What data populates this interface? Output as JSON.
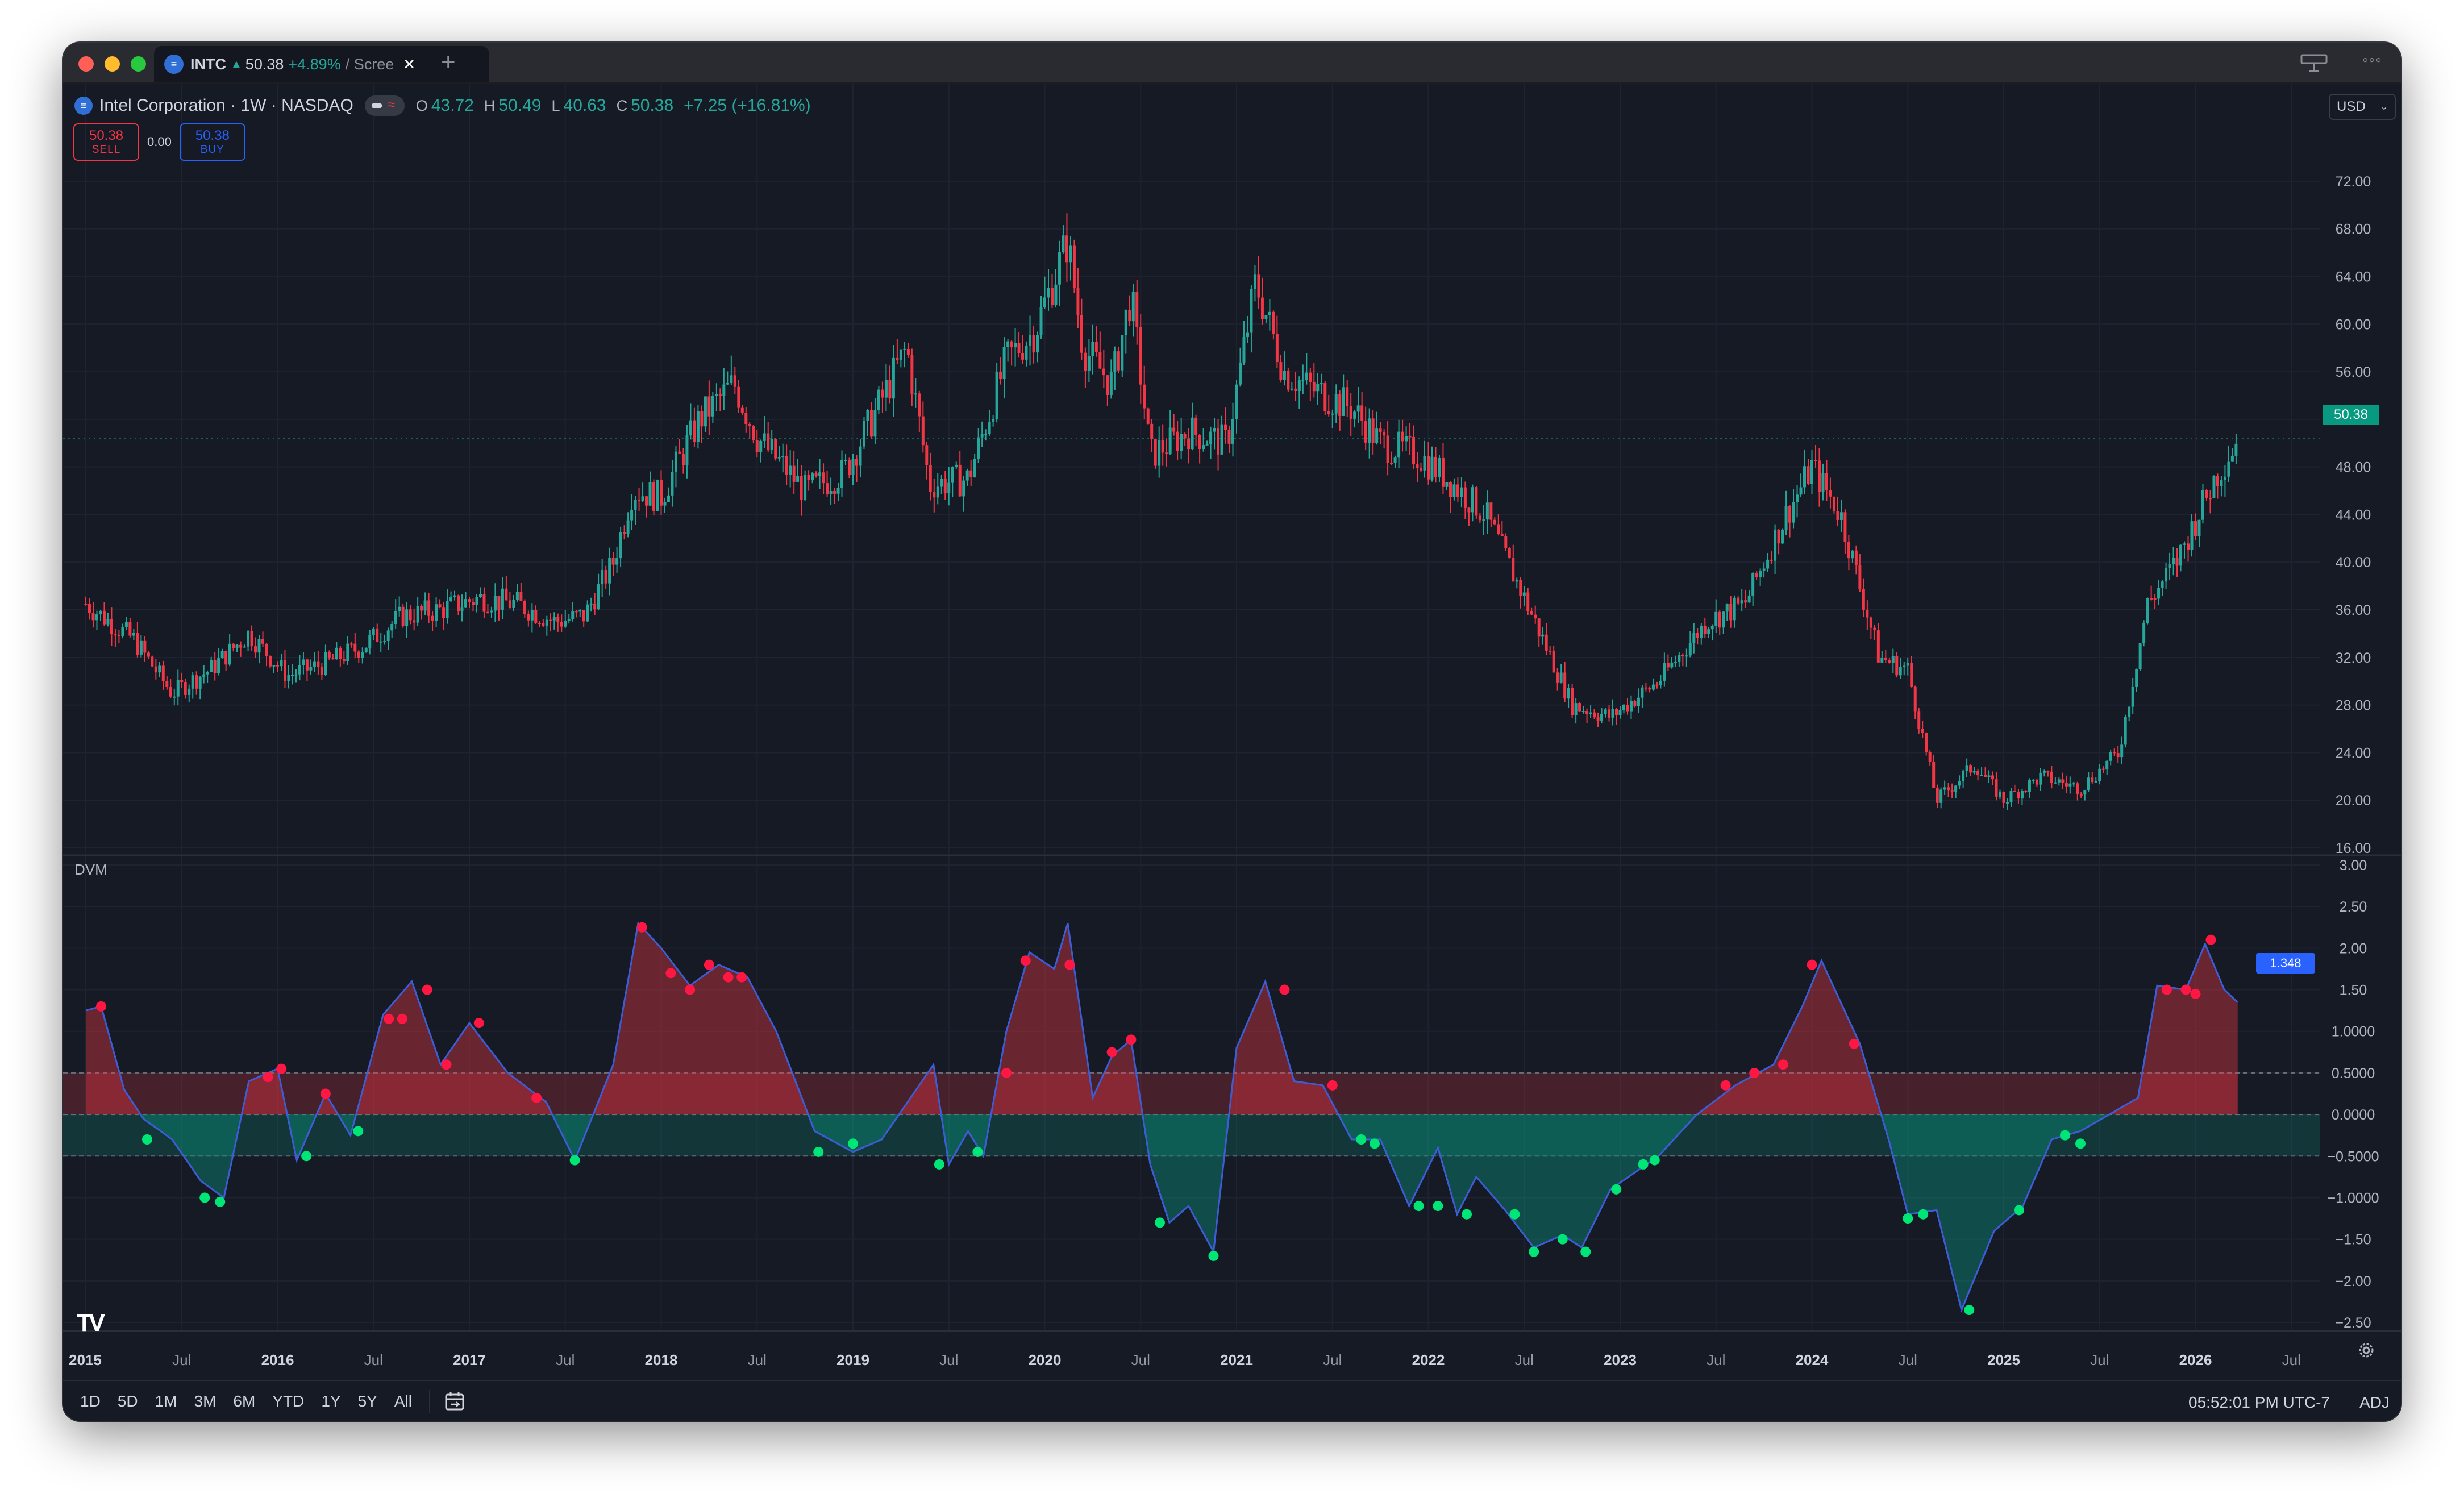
{
  "tab": {
    "symbol": "INTC",
    "arrow": "▲",
    "price": "50.38",
    "change": "+4.89%",
    "rest": "/ Scree",
    "close_glyph": "✕",
    "new_tab_glyph": "+"
  },
  "legend": {
    "title": "Intel Corporation · 1W · NASDAQ",
    "o_label": "O",
    "o": "43.72",
    "h_label": "H",
    "h": "50.49",
    "l_label": "L",
    "l": "40.63",
    "c_label": "C",
    "c": "50.38",
    "change": "+7.25 (+16.81%)"
  },
  "trade": {
    "sell_price": "50.38",
    "sell_label": "SELL",
    "spread": "0.00",
    "buy_price": "50.38",
    "buy_label": "BUY"
  },
  "currency": "USD",
  "last_price_tag": "50.38",
  "indicator": {
    "name": "DVM",
    "current_tag": "1.348"
  },
  "price_axis": {
    "min": 16,
    "max": 74,
    "ticks": [
      "16.00",
      "20.00",
      "24.00",
      "28.00",
      "32.00",
      "36.00",
      "40.00",
      "44.00",
      "48.00",
      "52.00",
      "56.00",
      "60.00",
      "64.00",
      "68.00",
      "72.00"
    ]
  },
  "dvm_axis": {
    "min": -2.5,
    "max": 3.0,
    "ticks": [
      {
        "v": 3.0,
        "t": "3.00"
      },
      {
        "v": 2.5,
        "t": "2.50"
      },
      {
        "v": 2.0,
        "t": "2.00"
      },
      {
        "v": 1.5,
        "t": "1.50"
      },
      {
        "v": 1.0,
        "t": "1.0000"
      },
      {
        "v": 0.5,
        "t": "0.5000"
      },
      {
        "v": 0.0,
        "t": "0.0000"
      },
      {
        "v": -0.5,
        "t": "−0.5000"
      },
      {
        "v": -1.0,
        "t": "−1.0000"
      },
      {
        "v": -1.5,
        "t": "−1.50"
      },
      {
        "v": -2.0,
        "t": "−2.00"
      },
      {
        "v": -2.5,
        "t": "−2.50"
      }
    ]
  },
  "time_axis": [
    "2015",
    "Jul",
    "2016",
    "Jul",
    "2017",
    "Jul",
    "2018",
    "Jul",
    "2019",
    "Jul",
    "2020",
    "Jul",
    "2021",
    "Jul",
    "2022",
    "Jul",
    "2023",
    "Jul",
    "2024",
    "Jul",
    "2025",
    "Jul",
    "2026",
    "Jul"
  ],
  "ranges": [
    "1D",
    "5D",
    "1M",
    "3M",
    "6M",
    "YTD",
    "1Y",
    "5Y",
    "All"
  ],
  "clock": "05:52:01 PM UTC-7",
  "adj": "ADJ",
  "colors": {
    "up": "#26a69a",
    "down": "#f23645",
    "dvm_line": "#3d5dd8",
    "hot_dot": "#ff1744",
    "cold_dot": "#00e676",
    "bg": "#161a25"
  },
  "chart_data": [
    {
      "type": "candlestick",
      "title": "Intel Corporation · 1W · NASDAQ",
      "interval": "1W",
      "x_start": "2015",
      "ylim": [
        16,
        74
      ],
      "close_path": [
        [
          "2015.00",
          36.5
        ],
        [
          "2015.25",
          33.5
        ],
        [
          "2015.45",
          29.0
        ],
        [
          "2015.65",
          31.0
        ],
        [
          "2015.85",
          34.0
        ],
        [
          "2016.05",
          30.5
        ],
        [
          "2016.25",
          31.5
        ],
        [
          "2016.45",
          33.0
        ],
        [
          "2016.65",
          35.5
        ],
        [
          "2016.85",
          36.0
        ],
        [
          "2017.05",
          37.0
        ],
        [
          "2017.25",
          36.5
        ],
        [
          "2017.45",
          35.0
        ],
        [
          "2017.6",
          35.5
        ],
        [
          "2017.75",
          40.0
        ],
        [
          "2017.85",
          46.0
        ],
        [
          "2018.0",
          45.5
        ],
        [
          "2018.2",
          52.0
        ],
        [
          "2018.38",
          55.0
        ],
        [
          "2018.5",
          50.5
        ],
        [
          "2018.75",
          46.0
        ],
        [
          "2018.95",
          47.5
        ],
        [
          "2019.1",
          52.0
        ],
        [
          "2019.28",
          58.0
        ],
        [
          "2019.4",
          46.5
        ],
        [
          "2019.6",
          47.0
        ],
        [
          "2019.8",
          57.0
        ],
        [
          "2019.95",
          59.5
        ],
        [
          "2020.12",
          67.0
        ],
        [
          "2020.2",
          58.0
        ],
        [
          "2020.35",
          55.0
        ],
        [
          "2020.45",
          62.5
        ],
        [
          "2020.55",
          49.0
        ],
        [
          "2020.75",
          51.0
        ],
        [
          "2020.95",
          50.0
        ],
        [
          "2021.1",
          63.5
        ],
        [
          "2021.25",
          56.0
        ],
        [
          "2021.4",
          54.5
        ],
        [
          "2021.6",
          53.0
        ],
        [
          "2021.75",
          50.0
        ],
        [
          "2021.95",
          49.0
        ],
        [
          "2022.1",
          47.0
        ],
        [
          "2022.3",
          44.0
        ],
        [
          "2022.5",
          37.0
        ],
        [
          "2022.75",
          28.0
        ],
        [
          "2022.95",
          27.0
        ],
        [
          "2023.2",
          30.0
        ],
        [
          "2023.45",
          35.0
        ],
        [
          "2023.65",
          36.5
        ],
        [
          "2023.85",
          43.5
        ],
        [
          "2024.0",
          48.0
        ],
        [
          "2024.15",
          44.0
        ],
        [
          "2024.35",
          32.0
        ],
        [
          "2024.5",
          31.0
        ],
        [
          "2024.65",
          20.0
        ],
        [
          "2024.85",
          23.0
        ],
        [
          "2025.0",
          20.0
        ],
        [
          "2025.2",
          22.0
        ],
        [
          "2025.4",
          21.0
        ],
        [
          "2025.6",
          24.0
        ],
        [
          "2025.75",
          36.5
        ],
        [
          "2025.9",
          40.0
        ],
        [
          "2026.1",
          47.0
        ],
        [
          "2026.22",
          50.38
        ]
      ]
    },
    {
      "type": "area",
      "title": "DVM",
      "ylim": [
        -2.5,
        3.0
      ],
      "bands": [
        0.5,
        0.0,
        -0.5
      ],
      "x_start": "2015",
      "values": [
        [
          "2015.0",
          1.25
        ],
        [
          "2015.08",
          1.3
        ],
        [
          "2015.2",
          0.3
        ],
        [
          "2015.3",
          -0.05
        ],
        [
          "2015.45",
          -0.3
        ],
        [
          "2015.6",
          -0.8
        ],
        [
          "2015.72",
          -1.0
        ],
        [
          "2015.85",
          0.4
        ],
        [
          "2016.0",
          0.55
        ],
        [
          "2016.1",
          -0.55
        ],
        [
          "2016.25",
          0.25
        ],
        [
          "2016.38",
          -0.25
        ],
        [
          "2016.55",
          1.2
        ],
        [
          "2016.7",
          1.6
        ],
        [
          "2016.85",
          0.6
        ],
        [
          "2017.0",
          1.1
        ],
        [
          "2017.2",
          0.5
        ],
        [
          "2017.4",
          0.15
        ],
        [
          "2017.55",
          -0.55
        ],
        [
          "2017.75",
          0.6
        ],
        [
          "2017.88",
          2.3
        ],
        [
          "2018.0",
          2.0
        ],
        [
          "2018.15",
          1.55
        ],
        [
          "2018.3",
          1.8
        ],
        [
          "2018.45",
          1.65
        ],
        [
          "2018.6",
          1.0
        ],
        [
          "2018.8",
          -0.2
        ],
        [
          "2019.0",
          -0.45
        ],
        [
          "2019.15",
          -0.3
        ],
        [
          "2019.3",
          0.2
        ],
        [
          "2019.42",
          0.6
        ],
        [
          "2019.5",
          -0.6
        ],
        [
          "2019.6",
          -0.2
        ],
        [
          "2019.68",
          -0.5
        ],
        [
          "2019.8",
          1.0
        ],
        [
          "2019.92",
          1.95
        ],
        [
          "2020.05",
          1.75
        ],
        [
          "2020.12",
          2.3
        ],
        [
          "2020.25",
          0.2
        ],
        [
          "2020.35",
          0.7
        ],
        [
          "2020.45",
          0.9
        ],
        [
          "2020.55",
          -0.6
        ],
        [
          "2020.65",
          -1.3
        ],
        [
          "2020.75",
          -1.1
        ],
        [
          "2020.88",
          -1.65
        ],
        [
          "2021.0",
          0.8
        ],
        [
          "2021.15",
          1.6
        ],
        [
          "2021.3",
          0.4
        ],
        [
          "2021.45",
          0.35
        ],
        [
          "2021.6",
          -0.3
        ],
        [
          "2021.75",
          -0.3
        ],
        [
          "2021.9",
          -1.1
        ],
        [
          "2022.05",
          -0.4
        ],
        [
          "2022.15",
          -1.2
        ],
        [
          "2022.25",
          -0.75
        ],
        [
          "2022.4",
          -1.15
        ],
        [
          "2022.55",
          -1.6
        ],
        [
          "2022.7",
          -1.45
        ],
        [
          "2022.8",
          -1.6
        ],
        [
          "2022.95",
          -0.9
        ],
        [
          "2023.2",
          -0.5
        ],
        [
          "2023.4",
          0.0
        ],
        [
          "2023.6",
          0.35
        ],
        [
          "2023.8",
          0.6
        ],
        [
          "2023.95",
          1.3
        ],
        [
          "2024.05",
          1.85
        ],
        [
          "2024.25",
          0.85
        ],
        [
          "2024.4",
          -0.3
        ],
        [
          "2024.5",
          -1.2
        ],
        [
          "2024.65",
          -1.15
        ],
        [
          "2024.78",
          -2.35
        ],
        [
          "2024.95",
          -1.4
        ],
        [
          "2025.1",
          -1.1
        ],
        [
          "2025.25",
          -0.3
        ],
        [
          "2025.4",
          -0.2
        ],
        [
          "2025.55",
          0.0
        ],
        [
          "2025.7",
          0.2
        ],
        [
          "2025.8",
          1.55
        ],
        [
          "2025.95",
          1.5
        ],
        [
          "2026.05",
          2.05
        ],
        [
          "2026.15",
          1.5
        ],
        [
          "2026.22",
          1.348
        ]
      ],
      "hot_dots": [
        [
          "2015.08",
          1.3
        ],
        [
          "2015.95",
          0.45
        ],
        [
          "2016.02",
          0.55
        ],
        [
          "2016.25",
          0.25
        ],
        [
          "2016.58",
          1.15
        ],
        [
          "2016.65",
          1.15
        ],
        [
          "2016.78",
          1.5
        ],
        [
          "2016.88",
          0.6
        ],
        [
          "2017.05",
          1.1
        ],
        [
          "2017.35",
          0.2
        ],
        [
          "2017.9",
          2.25
        ],
        [
          "2018.05",
          1.7
        ],
        [
          "2018.15",
          1.5
        ],
        [
          "2018.25",
          1.8
        ],
        [
          "2018.35",
          1.65
        ],
        [
          "2018.42",
          1.65
        ],
        [
          "2019.8",
          0.5
        ],
        [
          "2019.9",
          1.85
        ],
        [
          "2020.13",
          1.8
        ],
        [
          "2020.35",
          0.75
        ],
        [
          "2020.45",
          0.9
        ],
        [
          "2021.25",
          1.5
        ],
        [
          "2021.5",
          0.35
        ],
        [
          "2023.55",
          0.35
        ],
        [
          "2023.7",
          0.5
        ],
        [
          "2023.85",
          0.6
        ],
        [
          "2024.0",
          1.8
        ],
        [
          "2024.22",
          0.85
        ],
        [
          "2025.85",
          1.5
        ],
        [
          "2025.95",
          1.5
        ],
        [
          "2026.0",
          1.45
        ],
        [
          "2026.08",
          2.1
        ]
      ],
      "cold_dots": [
        [
          "2015.32",
          -0.3
        ],
        [
          "2015.62",
          -1.0
        ],
        [
          "2015.7",
          -1.05
        ],
        [
          "2016.15",
          -0.5
        ],
        [
          "2016.42",
          -0.2
        ],
        [
          "2017.55",
          -0.55
        ],
        [
          "2018.82",
          -0.45
        ],
        [
          "2019.0",
          -0.35
        ],
        [
          "2019.45",
          -0.6
        ],
        [
          "2019.65",
          -0.45
        ],
        [
          "2020.6",
          -1.3
        ],
        [
          "2020.88",
          -1.7
        ],
        [
          "2021.65",
          -0.3
        ],
        [
          "2021.72",
          -0.35
        ],
        [
          "2021.95",
          -1.1
        ],
        [
          "2022.05",
          -1.1
        ],
        [
          "2022.2",
          -1.2
        ],
        [
          "2022.45",
          -1.2
        ],
        [
          "2022.55",
          -1.65
        ],
        [
          "2022.7",
          -1.5
        ],
        [
          "2022.82",
          -1.65
        ],
        [
          "2022.98",
          -0.9
        ],
        [
          "2023.12",
          -0.6
        ],
        [
          "2023.18",
          -0.55
        ],
        [
          "2024.5",
          -1.25
        ],
        [
          "2024.58",
          -1.2
        ],
        [
          "2024.82",
          -2.35
        ],
        [
          "2025.08",
          -1.15
        ],
        [
          "2025.32",
          -0.25
        ],
        [
          "2025.4",
          -0.35
        ]
      ]
    }
  ]
}
